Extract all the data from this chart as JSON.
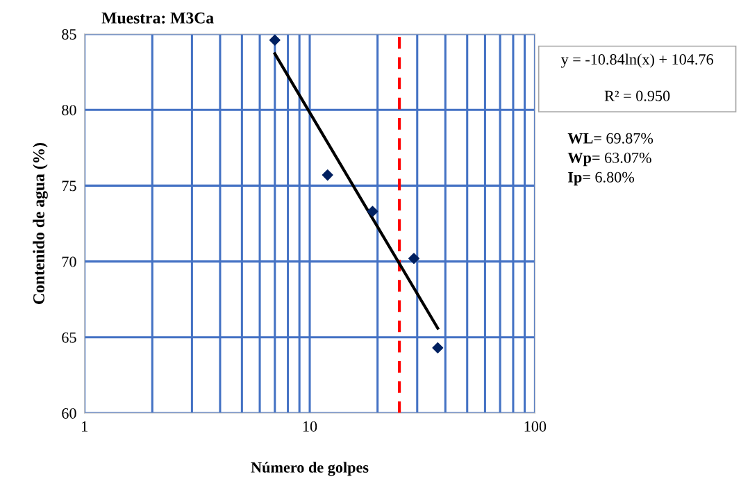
{
  "chart_data": {
    "type": "scatter",
    "title": "Muestra: M3Ca",
    "xlabel": "Número de golpes",
    "ylabel": "Contenido de agua (%)",
    "log": "x",
    "xlim": [
      1,
      100
    ],
    "xticks": [
      1,
      10,
      100
    ],
    "ylim": [
      60,
      85
    ],
    "yticks": [
      60,
      65,
      70,
      75,
      80,
      85
    ],
    "grid": true,
    "legend": false,
    "series": [
      {
        "color": "#002060",
        "marker": "diamond",
        "x": [
          7,
          12,
          19,
          29,
          37
        ],
        "values": [
          84.6,
          75.7,
          73.3,
          70.2,
          64.3
        ]
      },
      {
        "type": "line",
        "color": "#000000",
        "marker": "none",
        "line_style": "solid",
        "x": [
          7,
          37
        ],
        "values": [
          83.7,
          65.6
        ]
      }
    ],
    "ref_lines": [
      {
        "axis": "x",
        "value": 25,
        "label": null,
        "color": "#ff0000",
        "line_style": "dashed"
      }
    ],
    "annotations": [
      "y = -10.84ln(x) + 104.76",
      "R² = 0.950",
      "WL= 69.87%",
      "Wp= 63.07%",
      "Ip= 6.80%"
    ]
  }
}
